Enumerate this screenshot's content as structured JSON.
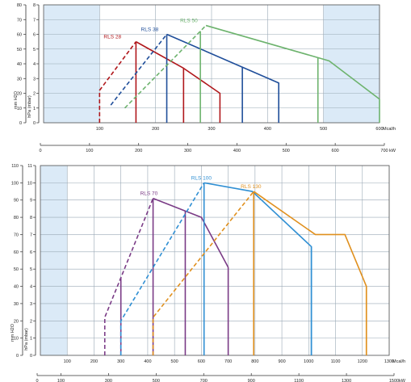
{
  "chart_data": [
    {
      "type": "line",
      "subtype": "burner firing range",
      "xlabel": "Mcal/h",
      "xlabel2": "kW",
      "ylabel_left": "mm H2O",
      "ylabel_right": "hPa (mbar)",
      "xlim": [
        0,
        600
      ],
      "ylim_hpa": [
        0,
        8
      ],
      "ylim_mm": [
        0,
        80
      ],
      "x_ticks": [
        100,
        200,
        300,
        400,
        500,
        600
      ],
      "x2_ticks_kw": [
        0,
        100,
        200,
        300,
        400,
        500,
        600,
        700
      ],
      "y_ticks_hpa": [
        0,
        1,
        2,
        3,
        4,
        5,
        6,
        7,
        8
      ],
      "y_ticks_mm": [
        0,
        10,
        20,
        30,
        40,
        50,
        60,
        70,
        80
      ],
      "background_band_x": [
        100,
        500
      ],
      "grid": true,
      "series": [
        {
          "name": "RLS 28",
          "color": "#b0171b",
          "boundary": [
            [
              100,
              0
            ],
            [
              100,
              2.2
            ],
            [
              165,
              5.5
            ],
            [
              250,
              3.7
            ],
            [
              315,
              2.0
            ],
            [
              315,
              0
            ]
          ],
          "dashed_segments": [
            [
              [
                100,
                0
              ],
              [
                100,
                2.2
              ],
              [
                165,
                5.5
              ]
            ]
          ],
          "verticals": [
            165,
            250
          ]
        },
        {
          "name": "RLS 38",
          "color": "#1f4e9a",
          "boundary": [
            [
              120,
              1.2
            ],
            [
              220,
              6.0
            ],
            [
              420,
              2.7
            ],
            [
              420,
              0
            ]
          ],
          "dashed_segments": [
            [
              [
                120,
                1.2
              ],
              [
                220,
                6.0
              ]
            ]
          ],
          "verticals": [
            220,
            355
          ]
        },
        {
          "name": "RLS 50",
          "color": "#6db36d",
          "boundary": [
            [
              145,
              1.0
            ],
            [
              290,
              6.6
            ],
            [
              510,
              4.2
            ],
            [
              600,
              1.6
            ],
            [
              600,
              0
            ]
          ],
          "dashed_segments": [
            [
              [
                145,
                1.0
              ],
              [
                290,
                6.6
              ]
            ]
          ],
          "verticals": [
            280,
            490
          ]
        }
      ],
      "series_labels": [
        "RLS 28",
        "RLS 38",
        "RLS 50"
      ]
    },
    {
      "type": "line",
      "subtype": "burner firing range",
      "xlabel": "Mcal/h",
      "xlabel2": "kW",
      "ylabel_left": "mm H2O",
      "ylabel_right": "hPa (mbar)",
      "xlim": [
        0,
        1300
      ],
      "ylim_hpa": [
        0,
        11
      ],
      "ylim_mm": [
        0,
        110
      ],
      "x_ticks": [
        100,
        200,
        300,
        400,
        500,
        600,
        700,
        800,
        900,
        1000,
        1100,
        1200,
        1300
      ],
      "x2_ticks_kw": [
        0,
        100,
        300,
        500,
        700,
        900,
        1100,
        1300,
        1500
      ],
      "y_ticks_hpa": [
        0,
        1,
        2,
        3,
        4,
        5,
        6,
        7,
        8,
        9,
        10,
        11
      ],
      "y_ticks_mm": [
        0,
        10,
        20,
        30,
        40,
        50,
        60,
        70,
        80,
        90,
        100,
        110
      ],
      "background_band_x": [
        100,
        1300
      ],
      "grid": true,
      "series": [
        {
          "name": "RLS 70",
          "color": "#7a3b86",
          "boundary": [
            [
              240,
              0
            ],
            [
              240,
              2.2
            ],
            [
              420,
              9.1
            ],
            [
              600,
              8.0
            ],
            [
              700,
              5.1
            ]
          ],
          "dashed_segments": [
            [
              [
                240,
                0
              ],
              [
                240,
                2.2
              ],
              [
                420,
                9.1
              ]
            ]
          ],
          "verticals": [
            300,
            420,
            540,
            700
          ]
        },
        {
          "name": "RLS 100",
          "color": "#2f8fd3",
          "boundary": [
            [
              300,
              0
            ],
            [
              300,
              2.0
            ],
            [
              610,
              10.0
            ],
            [
              790,
              9.5
            ],
            [
              1010,
              6.3
            ],
            [
              1010,
              0
            ]
          ],
          "dashed_segments": [
            [
              [
                300,
                0
              ],
              [
                300,
                2.0
              ],
              [
                610,
                10.0
              ]
            ]
          ],
          "verticals": [
            610,
            1010
          ]
        },
        {
          "name": "RLS 130",
          "color": "#e0901e",
          "boundary": [
            [
              420,
              0
            ],
            [
              420,
              2.2
            ],
            [
              795,
              9.5
            ],
            [
              1025,
              7.0
            ],
            [
              1135,
              7.0
            ],
            [
              1215,
              4.0
            ],
            [
              1215,
              0
            ]
          ],
          "dashed_segments": [
            [
              [
                420,
                0
              ],
              [
                420,
                2.2
              ],
              [
                795,
                9.5
              ]
            ]
          ],
          "verticals": [
            795,
            1215
          ]
        }
      ],
      "series_labels": [
        "RLS 70",
        "RLS 100",
        "RLS 130"
      ]
    }
  ],
  "labels": {
    "chart1_unit_top": "Mcal/h",
    "chart1_unit_bottom": "kW",
    "chart2_unit_top": "Mcal/h",
    "chart2_unit_bottom": "kW",
    "left_axis_label": "mm H2O",
    "right_axis_label": "hPa (mbar)"
  }
}
